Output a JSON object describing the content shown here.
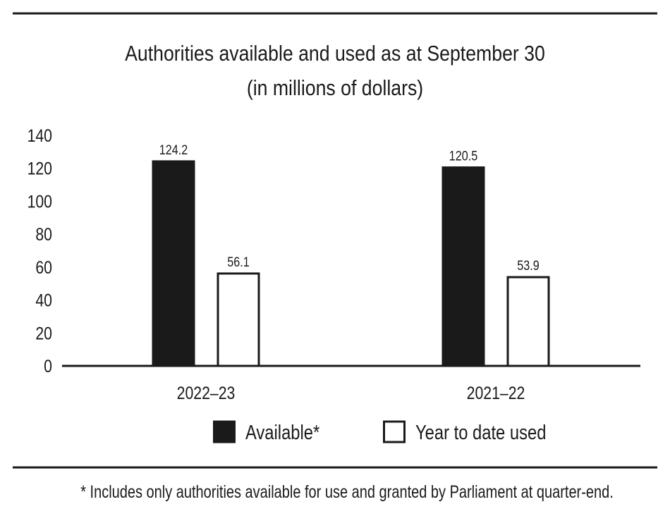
{
  "chart_data": {
    "type": "bar",
    "title": "Authorities available and used as at September 30",
    "subtitle": "(in millions of dollars)",
    "xlabel": "",
    "ylabel": "",
    "ylim": [
      0,
      140
    ],
    "yticks": [
      0,
      20,
      40,
      60,
      80,
      100,
      120,
      140
    ],
    "grid": false,
    "legend_position": "bottom",
    "categories": [
      "2022–23",
      "2021–22"
    ],
    "series": [
      {
        "name": "Available*",
        "values": [
          124.2,
          120.5
        ],
        "labels": [
          "124.2",
          "120.5"
        ],
        "color": "#1a1a1a"
      },
      {
        "name": "Year to date used",
        "values": [
          56.1,
          53.9
        ],
        "labels": [
          "56.1",
          "53.9"
        ],
        "color": "#ffffff"
      }
    ],
    "footnote": "* Includes only authorities available for use and granted by Parliament at quarter-end."
  }
}
